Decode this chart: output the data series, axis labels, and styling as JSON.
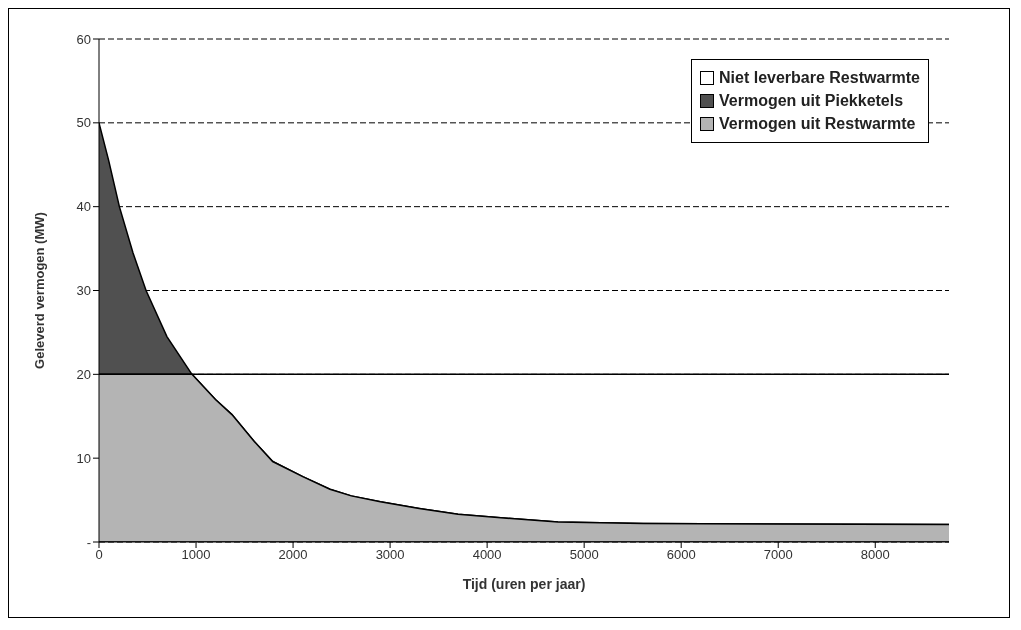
{
  "chart_data": {
    "type": "area",
    "stacked": true,
    "xlabel": "Tijd (uren per jaar)",
    "ylabel": "Geleverd vermogen (MW)",
    "x": [
      0,
      100,
      210,
      350,
      485,
      700,
      958,
      1200,
      1370,
      1600,
      1790,
      2100,
      2380,
      2600,
      2900,
      3300,
      3700,
      4250,
      4730,
      5610,
      8760
    ],
    "series": [
      {
        "name": "Vermogen uit Restwarmte",
        "color": "#b4b4b4",
        "values": [
          20,
          20,
          20,
          20,
          20,
          20,
          20,
          17,
          15.2,
          12,
          9.6,
          7.8,
          6.3,
          5.5,
          4.8,
          4,
          3.3,
          2.8,
          2.4,
          2.2,
          2.1
        ]
      },
      {
        "name": "Vermogen uit Piekketels",
        "color": "#505050",
        "values": [
          30,
          25.5,
          20,
          14.5,
          10,
          4.5,
          0,
          null,
          null,
          null,
          null,
          null,
          null,
          null,
          null,
          null,
          null,
          null,
          null,
          null,
          null
        ]
      },
      {
        "name": "Niet leverbare Restwarmte",
        "color": "#ffffff",
        "values": [
          null,
          null,
          null,
          null,
          null,
          null,
          0,
          3,
          4.8,
          8,
          10.4,
          12.2,
          13.7,
          14.5,
          15.2,
          16,
          16.7,
          17.2,
          17.6,
          17.8,
          17.9
        ]
      }
    ],
    "xlim": [
      0,
      8760
    ],
    "xticks": [
      0,
      1000,
      2000,
      3000,
      4000,
      5000,
      6000,
      7000,
      8000
    ],
    "ylim": [
      0,
      60
    ],
    "yticks": [
      {
        "value": 0,
        "label": "-"
      },
      10,
      20,
      30,
      40,
      50,
      60
    ],
    "grid": "y",
    "legend": "top right"
  }
}
